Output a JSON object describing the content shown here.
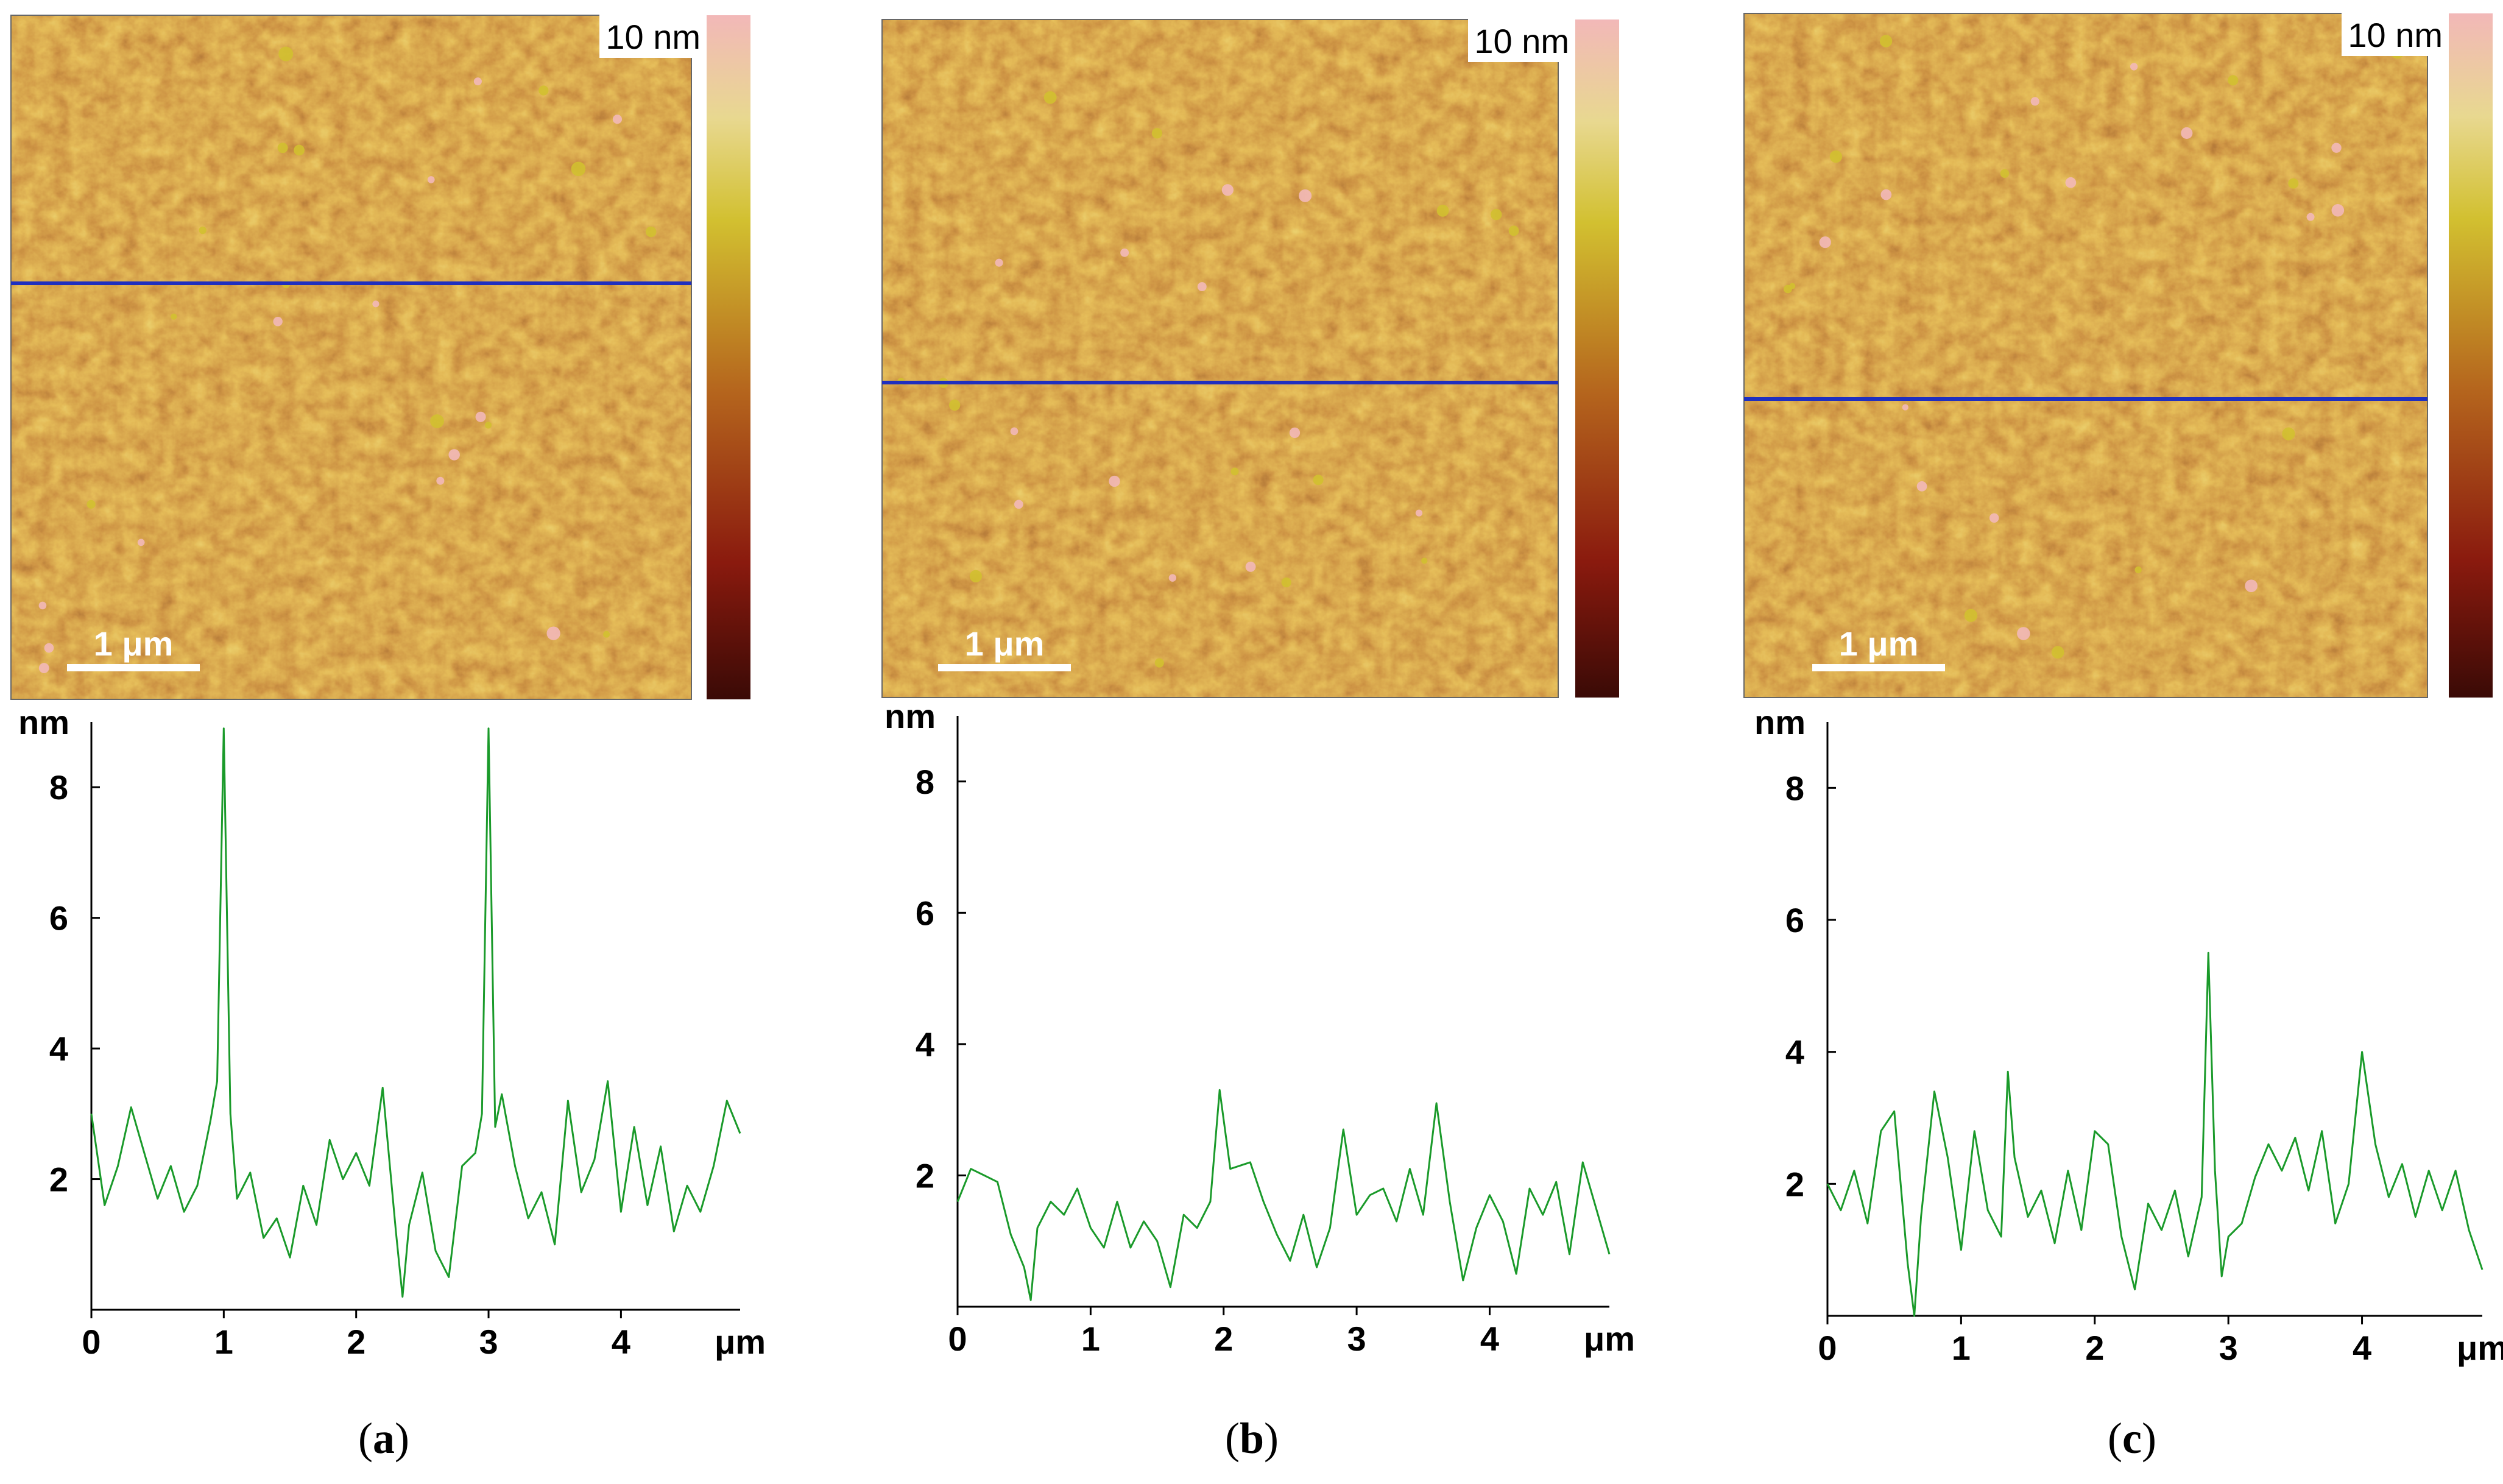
{
  "colors": {
    "afm_dark": "#3a0a06",
    "afm_mid": "#b5651d",
    "afm_high": "#d2c030",
    "afm_peak": "#f2b8b8",
    "scan_line": "#1f2fbf",
    "profile_line": "#1a9a2a",
    "axis": "#000000"
  },
  "panels": [
    {
      "id": "a",
      "letter": "a",
      "colorbar_label": "10 nm",
      "scalebar_label": "1 μm",
      "y_unit": "nm",
      "x_unit": "μm"
    },
    {
      "id": "b",
      "letter": "b",
      "colorbar_label": "10 nm",
      "scalebar_label": "1 μm",
      "y_unit": "nm",
      "x_unit": "μm"
    },
    {
      "id": "c",
      "letter": "c",
      "colorbar_label": "10 nm",
      "scalebar_label": "1 μm",
      "y_unit": "nm",
      "x_unit": "μm"
    }
  ],
  "chart_data": [
    {
      "type": "line",
      "panel": "a",
      "xlabel": "μm",
      "ylabel": "nm",
      "xlim": [
        0,
        4.9
      ],
      "ylim": [
        0,
        9
      ],
      "x_ticks": [
        0,
        1,
        2,
        3,
        4
      ],
      "y_ticks": [
        2,
        4,
        6,
        8
      ],
      "x": [
        0.0,
        0.1,
        0.2,
        0.3,
        0.4,
        0.5,
        0.6,
        0.7,
        0.8,
        0.9,
        0.95,
        1.0,
        1.05,
        1.1,
        1.2,
        1.3,
        1.4,
        1.5,
        1.6,
        1.7,
        1.8,
        1.9,
        2.0,
        2.1,
        2.2,
        2.3,
        2.35,
        2.4,
        2.5,
        2.6,
        2.7,
        2.8,
        2.9,
        2.95,
        3.0,
        3.05,
        3.1,
        3.2,
        3.3,
        3.4,
        3.5,
        3.6,
        3.7,
        3.8,
        3.9,
        4.0,
        4.1,
        4.2,
        4.3,
        4.4,
        4.5,
        4.6,
        4.7,
        4.8,
        4.9
      ],
      "y": [
        3.0,
        1.6,
        2.2,
        3.1,
        2.4,
        1.7,
        2.2,
        1.5,
        1.9,
        2.9,
        3.5,
        8.9,
        3.0,
        1.7,
        2.1,
        1.1,
        1.4,
        0.8,
        1.9,
        1.3,
        2.6,
        2.0,
        2.4,
        1.9,
        3.4,
        1.2,
        0.2,
        1.3,
        2.1,
        0.9,
        0.5,
        2.2,
        2.4,
        3.0,
        8.9,
        2.8,
        3.3,
        2.2,
        1.4,
        1.8,
        1.0,
        3.2,
        1.8,
        2.3,
        3.5,
        1.5,
        2.8,
        1.6,
        2.5,
        1.2,
        1.9,
        1.5,
        2.2,
        3.2,
        2.7
      ]
    },
    {
      "type": "line",
      "panel": "b",
      "xlabel": "μm",
      "ylabel": "nm",
      "xlim": [
        0,
        4.9
      ],
      "ylim": [
        0,
        9
      ],
      "x_ticks": [
        0,
        1,
        2,
        3,
        4
      ],
      "y_ticks": [
        2,
        4,
        6,
        8
      ],
      "x": [
        0.0,
        0.1,
        0.2,
        0.3,
        0.4,
        0.5,
        0.55,
        0.6,
        0.7,
        0.8,
        0.9,
        1.0,
        1.1,
        1.2,
        1.3,
        1.4,
        1.5,
        1.6,
        1.7,
        1.8,
        1.9,
        1.97,
        2.05,
        2.2,
        2.3,
        2.4,
        2.5,
        2.6,
        2.7,
        2.8,
        2.9,
        3.0,
        3.1,
        3.2,
        3.3,
        3.4,
        3.5,
        3.6,
        3.7,
        3.8,
        3.9,
        4.0,
        4.1,
        4.2,
        4.3,
        4.4,
        4.5,
        4.6,
        4.7,
        4.8,
        4.9
      ],
      "y": [
        1.6,
        2.1,
        2.0,
        1.9,
        1.1,
        0.6,
        0.1,
        1.2,
        1.6,
        1.4,
        1.8,
        1.2,
        0.9,
        1.6,
        0.9,
        1.3,
        1.0,
        0.3,
        1.4,
        1.2,
        1.6,
        3.3,
        2.1,
        2.2,
        1.6,
        1.1,
        0.7,
        1.4,
        0.6,
        1.2,
        2.7,
        1.4,
        1.7,
        1.8,
        1.3,
        2.1,
        1.4,
        3.1,
        1.6,
        0.4,
        1.2,
        1.7,
        1.3,
        0.5,
        1.8,
        1.4,
        1.9,
        0.8,
        2.2,
        1.5,
        0.8
      ]
    },
    {
      "type": "line",
      "panel": "c",
      "xlabel": "μm",
      "ylabel": "nm",
      "xlim": [
        0,
        4.9
      ],
      "ylim": [
        0,
        9
      ],
      "x_ticks": [
        0,
        1,
        2,
        3,
        4
      ],
      "y_ticks": [
        2,
        4,
        6,
        8
      ],
      "x": [
        0.0,
        0.1,
        0.2,
        0.3,
        0.4,
        0.5,
        0.6,
        0.65,
        0.7,
        0.8,
        0.9,
        1.0,
        1.1,
        1.2,
        1.3,
        1.35,
        1.4,
        1.5,
        1.6,
        1.7,
        1.8,
        1.9,
        2.0,
        2.1,
        2.2,
        2.3,
        2.4,
        2.5,
        2.6,
        2.7,
        2.8,
        2.85,
        2.9,
        2.95,
        3.0,
        3.1,
        3.2,
        3.3,
        3.4,
        3.5,
        3.6,
        3.7,
        3.8,
        3.9,
        4.0,
        4.1,
        4.2,
        4.3,
        4.4,
        4.5,
        4.6,
        4.7,
        4.8,
        4.9
      ],
      "y": [
        2.0,
        1.6,
        2.2,
        1.4,
        2.8,
        3.1,
        0.8,
        0.0,
        1.5,
        3.4,
        2.4,
        1.0,
        2.8,
        1.6,
        1.2,
        3.7,
        2.4,
        1.5,
        1.9,
        1.1,
        2.2,
        1.3,
        2.8,
        2.6,
        1.2,
        0.4,
        1.7,
        1.3,
        1.9,
        0.9,
        1.8,
        5.5,
        2.2,
        0.6,
        1.2,
        1.4,
        2.1,
        2.6,
        2.2,
        2.7,
        1.9,
        2.8,
        1.4,
        2.0,
        4.0,
        2.6,
        1.8,
        2.3,
        1.5,
        2.2,
        1.6,
        2.2,
        1.3,
        0.7
      ]
    }
  ]
}
